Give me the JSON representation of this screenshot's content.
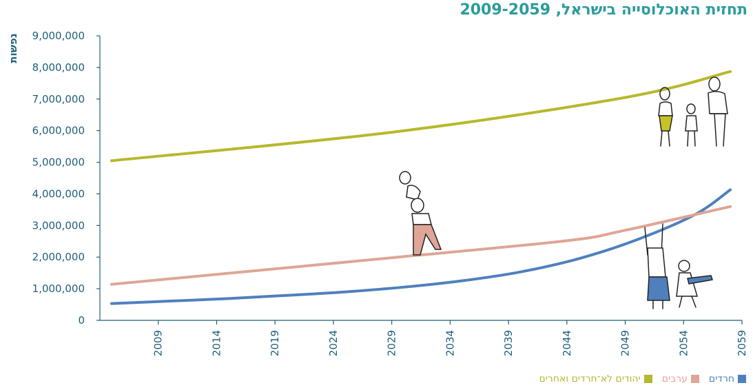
{
  "chart_data": {
    "type": "line",
    "title": "תחזית האוכלוסייה בישראל, 2009-2059",
    "ylabel": "נפשות",
    "xlabel": "",
    "xlim": [
      2004,
      2059
    ],
    "ylim": [
      0,
      9000000
    ],
    "x_ticks": [
      "2009",
      "2014",
      "2019",
      "2024",
      "2029",
      "2034",
      "2039",
      "2044",
      "2049",
      "2054",
      "2059"
    ],
    "y_ticks": [
      "0",
      "1,000,000",
      "2,000,000",
      "3,000,000",
      "4,000,000",
      "5,000,000",
      "6,000,000",
      "7,000,000",
      "8,000,000",
      "9,000,000"
    ],
    "grid": false,
    "legend_position": "bottom-right",
    "series": [
      {
        "name": "חרדים",
        "color": "#4f80bd",
        "points": [
          [
            2005,
            530000
          ],
          [
            2010,
            610000
          ],
          [
            2015,
            690000
          ],
          [
            2020,
            790000
          ],
          [
            2025,
            900000
          ],
          [
            2030,
            1050000
          ],
          [
            2035,
            1250000
          ],
          [
            2040,
            1530000
          ],
          [
            2045,
            1950000
          ],
          [
            2050,
            2550000
          ],
          [
            2055,
            3350000
          ],
          [
            2058,
            4130000
          ]
        ]
      },
      {
        "name": "ערבים",
        "color": "#dfa595",
        "points": [
          [
            2005,
            1140000
          ],
          [
            2029,
            1980000
          ],
          [
            2044,
            2520000
          ],
          [
            2049,
            2850000
          ],
          [
            2058,
            3600000
          ]
        ]
      },
      {
        "name": "יהודים לא־חרדים ואחרים",
        "color": "#b7b82d",
        "points": [
          [
            2005,
            5050000
          ],
          [
            2029,
            5950000
          ],
          [
            2049,
            7050000
          ],
          [
            2058,
            7870000
          ]
        ]
      }
    ]
  }
}
